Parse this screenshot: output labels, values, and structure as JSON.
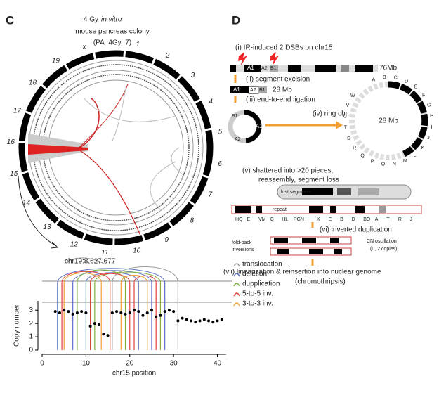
{
  "panel_c": {
    "label": "C",
    "title_lines": [
      "4 Gy",
      "in vitro",
      "mouse pancreas colony",
      "(PA_4Gy_7)"
    ],
    "chromosomes": [
      "1",
      "2",
      "3",
      "4",
      "5",
      "6",
      "7",
      "8",
      "9",
      "10",
      "11",
      "12",
      "13",
      "14",
      "15",
      "16",
      "17",
      "18",
      "19",
      "x"
    ],
    "locus": "chr19:8,627,677"
  },
  "panel_d": {
    "label": "D",
    "steps": [
      "(i) IR-induced 2 DSBs on chr15",
      "(ii) segment excision",
      "(iii) end-to-end ligation",
      "(iv) ring chr.",
      "(v) shattered into >20 pieces,",
      "reassembly, segment loss",
      "(vi) inverted duplication",
      "(vii) linearization & reinsertion into nuclear genome",
      "(chromothripsis)"
    ],
    "segments": [
      "A1",
      "A2",
      "B1"
    ],
    "chr_size": "76Mb",
    "ring_size": "28 Mb",
    "lost": "lost segments",
    "repeat": "repeat",
    "ring_letters": [
      "A",
      "B",
      "C",
      "D",
      "E",
      "F",
      "G",
      "H",
      "I",
      "J",
      "K",
      "L",
      "M",
      "N",
      "O",
      "P",
      "Q",
      "R",
      "S",
      "T",
      "U",
      "V",
      "W"
    ],
    "bar_letters": [
      "HQ",
      "E",
      "VM",
      "C",
      "HL",
      "PGN",
      "I",
      "K",
      "E",
      "B",
      "D",
      "BO",
      "A",
      "T",
      "R",
      "J"
    ],
    "foldback": [
      "fold-back",
      "inversions"
    ],
    "cn_osc": [
      "CN oscillation",
      "(0, 2 copies)"
    ]
  },
  "chart_data": {
    "type": "scatter",
    "xlabel": "chr15 position",
    "ylabel": "Copy number",
    "xlim": [
      0,
      42
    ],
    "ylim": [
      0,
      3.7
    ],
    "xticks": [
      0,
      10,
      20,
      30,
      40
    ],
    "yticks": [
      0,
      1,
      2,
      3
    ],
    "series": [
      {
        "name": "copy number",
        "color": "#000000",
        "x": [
          3,
          4,
          5,
          6,
          7,
          8,
          9,
          10,
          11,
          12,
          13,
          14,
          15,
          16,
          17,
          18,
          19,
          20,
          21,
          22,
          23,
          24,
          25,
          26,
          27,
          28,
          29,
          30,
          31,
          32,
          33,
          34,
          35,
          36,
          37,
          38,
          39,
          40,
          41
        ],
        "values": [
          2.9,
          2.8,
          3.0,
          2.9,
          2.7,
          2.8,
          2.9,
          2.8,
          1.8,
          2.0,
          1.9,
          1.2,
          1.1,
          2.8,
          2.9,
          2.8,
          2.7,
          2.8,
          3.0,
          2.9,
          2.6,
          2.8,
          3.0,
          2.5,
          2.6,
          2.9,
          3.0,
          2.9,
          2.2,
          2.4,
          2.3,
          2.2,
          2.1,
          2.2,
          2.3,
          2.2,
          2.1,
          2.2,
          2.3
        ]
      }
    ],
    "svs": [
      {
        "name": "translocation",
        "color": "#999999",
        "spans": [
          [
            16,
            31
          ]
        ]
      },
      {
        "name": "deletion",
        "color": "#5b6fc9",
        "spans": [
          [
            3.5,
            28
          ],
          [
            7,
            25
          ],
          [
            10,
            22
          ]
        ]
      },
      {
        "name": "dupplication",
        "color": "#7fae3c",
        "spans": [
          [
            8,
            19
          ],
          [
            12,
            27
          ]
        ]
      },
      {
        "name": "5-to-5 inv.",
        "color": "#e0403a",
        "spans": [
          [
            4.5,
            15.5
          ],
          [
            11,
            20
          ],
          [
            21,
            26
          ]
        ]
      },
      {
        "name": "3-to-3 inv.",
        "color": "#f0a030",
        "spans": [
          [
            5,
            13.5
          ],
          [
            18,
            24
          ]
        ]
      }
    ]
  }
}
